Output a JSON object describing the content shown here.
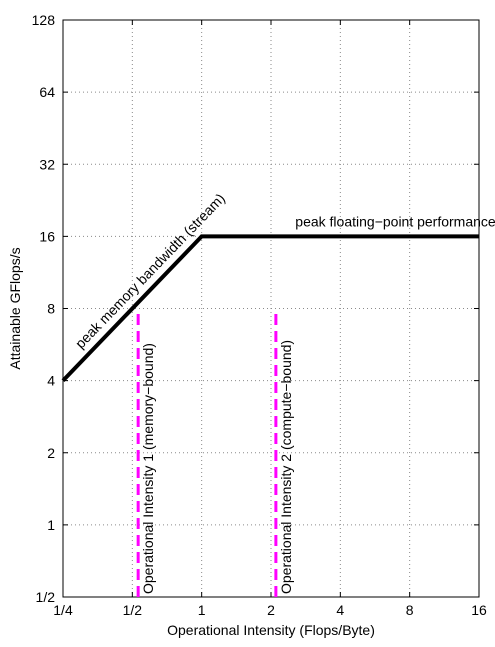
{
  "chart_data": {
    "type": "line",
    "title": "",
    "xlabel": "Operational Intensity (Flops/Byte)",
    "ylabel": "Attainable GFlops/s",
    "xscale": "log2",
    "yscale": "log2",
    "xlim": [
      0.25,
      16
    ],
    "ylim": [
      0.5,
      128
    ],
    "grid": true,
    "x_ticks": [
      0.25,
      0.5,
      1,
      2,
      4,
      8,
      16
    ],
    "x_tick_labels": [
      "1/4",
      "1/2",
      "1",
      "2",
      "4",
      "8",
      "16"
    ],
    "y_ticks": [
      0.5,
      1,
      2,
      4,
      8,
      16,
      32,
      64,
      128
    ],
    "y_tick_labels": [
      "1/2",
      "1",
      "2",
      "4",
      "8",
      "16",
      "32",
      "64",
      "128"
    ],
    "series": [
      {
        "color": "#000000",
        "x": [
          0.25,
          1,
          16
        ],
        "y": [
          4,
          16,
          16
        ]
      }
    ],
    "vertical_lines": [
      {
        "x": 0.53,
        "color": "#ff00ff",
        "label": "Operational Intensity 1 (memory−bound)"
      },
      {
        "x": 2.1,
        "color": "#ff00ff",
        "label": "Operational Intensity 2 (compute−bound)"
      }
    ],
    "annotations": [
      {
        "text": "peak memory bandwidth (stream)",
        "x": 0.3,
        "y": 5.4
      },
      {
        "text": "peak floating−point performance",
        "x": 2.55,
        "y": 17.6
      }
    ]
  }
}
